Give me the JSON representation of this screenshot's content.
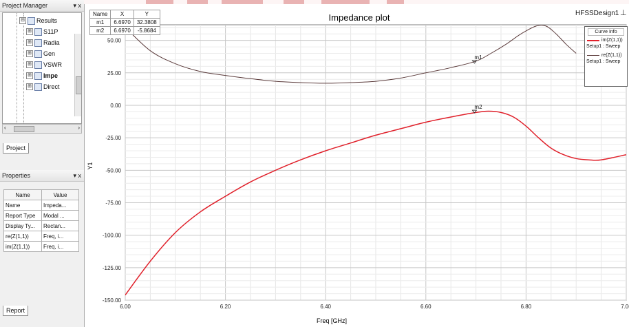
{
  "project_manager": {
    "title": "Project Manager",
    "controls": "▾ x",
    "tree": [
      {
        "label": "Results",
        "expander": "⊟",
        "selected": false
      },
      {
        "label": "S11P",
        "expander": "⊞",
        "selected": false
      },
      {
        "label": "Radia",
        "expander": "⊞",
        "selected": false
      },
      {
        "label": "Gen",
        "expander": "⊞",
        "selected": false
      },
      {
        "label": "VSWR",
        "expander": "⊞",
        "selected": false
      },
      {
        "label": "Impe",
        "expander": "⊞",
        "selected": true
      },
      {
        "label": "Direct",
        "expander": "⊞",
        "selected": false
      }
    ],
    "tab": "Project"
  },
  "properties": {
    "title": "Properties",
    "controls": "▾ x",
    "headers": [
      "Name",
      "Value"
    ],
    "rows": [
      [
        "Name",
        "Impeda..."
      ],
      [
        "Report Type",
        "Modal ..."
      ],
      [
        "Display Ty...",
        "Rectan..."
      ],
      [
        "re(Z(1,1))",
        "Freq, i..."
      ],
      [
        "im(Z(1,1))",
        "Freq, i..."
      ]
    ],
    "tab": "Report"
  },
  "plot": {
    "title": "Impedance plot",
    "design_name": "HFSSDesign1",
    "design_icon": "ansys-logo-icon",
    "xlabel": "Freq [GHz]",
    "ylabel": "Y1",
    "marker_table": {
      "headers": [
        "Name",
        "X",
        "Y"
      ],
      "rows": [
        [
          "m1",
          "6.6970",
          "32.3808"
        ],
        [
          "m2",
          "6.6970",
          "-5.8684"
        ]
      ]
    },
    "markers": [
      {
        "name": "m1",
        "x": 6.697,
        "y": 32.3808
      },
      {
        "name": "m2",
        "x": 6.697,
        "y": -5.8684
      }
    ],
    "curve_info": {
      "title": "Curve Info",
      "entries": [
        {
          "name": "im(Z(1,1))",
          "setup": "Setup1 : Sweep",
          "color": "#e0202a"
        },
        {
          "name": "re(Z(1,1))",
          "setup": "Setup1 : Sweep",
          "color": "#5a3a3a"
        }
      ]
    }
  },
  "chart_data": {
    "type": "line",
    "title": "Impedance plot",
    "xlabel": "Freq [GHz]",
    "ylabel": "Y1",
    "xlim": [
      6.0,
      7.0
    ],
    "ylim": [
      -150,
      62
    ],
    "x_ticks": [
      "6.00",
      "6.20",
      "6.40",
      "6.60",
      "6.80",
      "7.00"
    ],
    "y_ticks": [
      {
        "v": 50,
        "label": "50.00"
      },
      {
        "v": 25,
        "label": "25.00"
      },
      {
        "v": 0,
        "label": "0.00"
      },
      {
        "v": -25,
        "label": "-25.00"
      },
      {
        "v": -50,
        "label": "-50.00"
      },
      {
        "v": -75,
        "label": "-75.00"
      },
      {
        "v": -100,
        "label": "-100.00"
      },
      {
        "v": -125,
        "label": "-125.00"
      },
      {
        "v": -150,
        "label": "-150.00"
      }
    ],
    "grid": true,
    "legend": "top-right",
    "series": [
      {
        "name": "re(Z(1,1))",
        "color": "#5a3a3a",
        "x": [
          6.0,
          6.05,
          6.1,
          6.15,
          6.2,
          6.25,
          6.3,
          6.35,
          6.4,
          6.45,
          6.5,
          6.55,
          6.6,
          6.65,
          6.7,
          6.73,
          6.76,
          6.79,
          6.82,
          6.84,
          6.86,
          6.88,
          6.9
        ],
        "y": [
          60,
          42,
          32,
          26,
          23,
          20.5,
          18.5,
          17.5,
          17,
          17.5,
          18.5,
          21,
          25,
          29,
          34,
          40,
          47,
          55,
          61,
          61,
          55,
          47,
          40
        ]
      },
      {
        "name": "im(Z(1,1))",
        "color": "#e0202a",
        "x": [
          6.0,
          6.05,
          6.1,
          6.15,
          6.2,
          6.25,
          6.3,
          6.35,
          6.4,
          6.45,
          6.5,
          6.55,
          6.6,
          6.65,
          6.7,
          6.725,
          6.75,
          6.775,
          6.8,
          6.825,
          6.85,
          6.875,
          6.9,
          6.925,
          6.95,
          7.0
        ],
        "y": [
          -146,
          -120,
          -98,
          -82,
          -70,
          -59,
          -50,
          -42,
          -35,
          -29,
          -23,
          -18,
          -13,
          -9,
          -5.5,
          -4.5,
          -5.5,
          -9,
          -16,
          -25,
          -33,
          -38,
          -41,
          -42,
          -42,
          -38
        ]
      }
    ]
  }
}
